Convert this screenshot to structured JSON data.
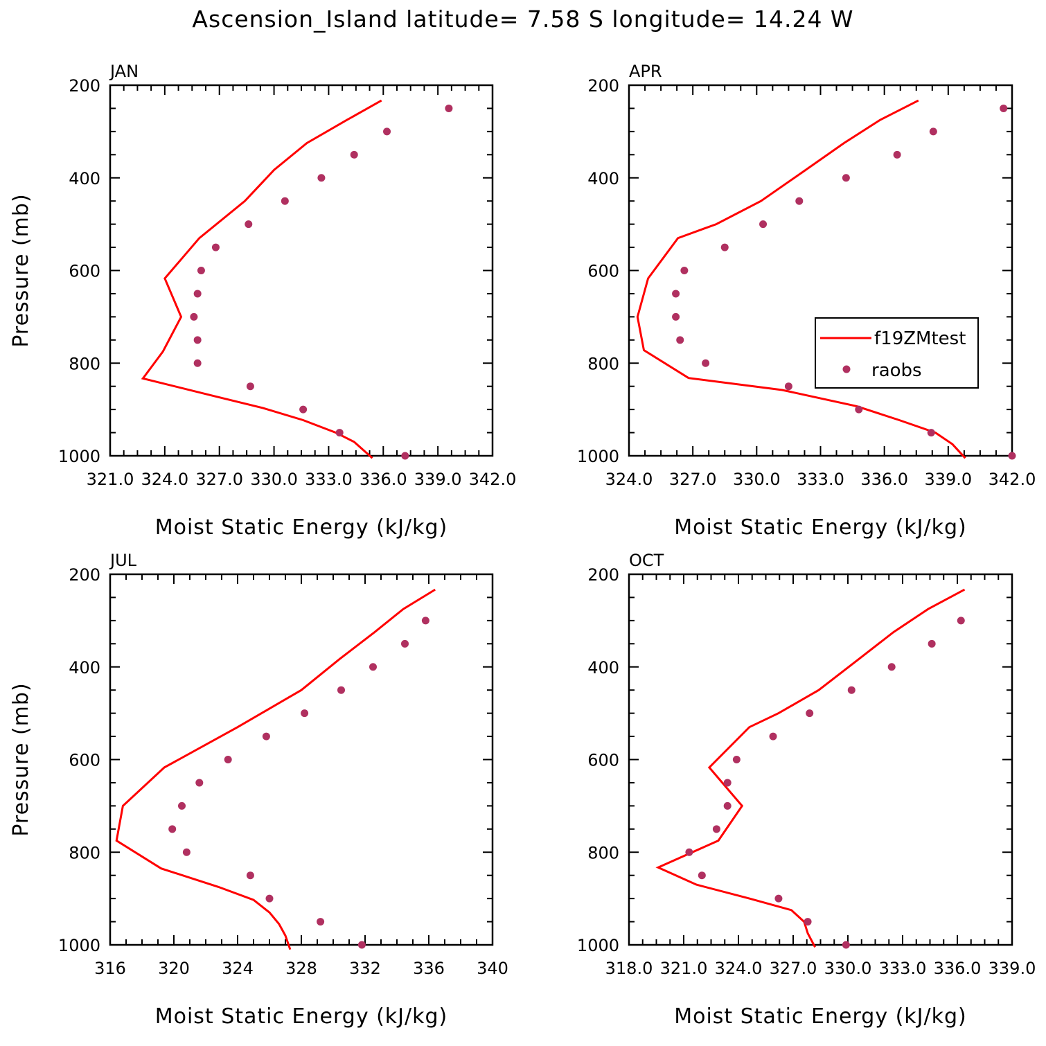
{
  "title": "Ascension_Island  latitude= 7.58 S longitude= 14.24 W",
  "colors": {
    "model": "#ff0000",
    "obs": "#b03060",
    "axis": "#000000"
  },
  "legend": {
    "items": [
      {
        "label": "f19ZMtest",
        "kind": "line"
      },
      {
        "label": "raobs",
        "kind": "marker"
      }
    ],
    "location": "inside APR panel, lower right"
  },
  "chart_data": [
    {
      "type": "line",
      "panel": "JAN",
      "xlabel": "Moist Static Energy (kJ/kg)",
      "ylabel": "Pressure (mb)",
      "xlim": [
        321.0,
        342.0
      ],
      "ylim": [
        1000,
        200
      ],
      "xticks": [
        "321.0",
        "324.0",
        "327.0",
        "330.0",
        "333.0",
        "336.0",
        "339.0",
        "342.0"
      ],
      "yticks": [
        "200",
        "400",
        "600",
        "800",
        "1000"
      ],
      "series": [
        {
          "name": "f19ZMtest",
          "x": [
            335.9,
            334.0,
            331.8,
            330.0,
            328.4,
            325.9,
            324.0,
            324.9,
            323.9,
            322.8,
            326.6,
            329.4,
            331.6,
            333.4,
            334.4,
            335.4
          ],
          "y": [
            233,
            275,
            325,
            383,
            450,
            530,
            617,
            700,
            775,
            833,
            870,
            897,
            923,
            950,
            970,
            1005
          ]
        },
        {
          "name": "raobs",
          "x": [
            339.6,
            336.2,
            334.4,
            332.6,
            330.6,
            328.6,
            326.8,
            326.0,
            325.8,
            325.6,
            325.8,
            325.8,
            328.7,
            331.6,
            333.6,
            337.2
          ],
          "y": [
            250,
            300,
            350,
            400,
            450,
            500,
            550,
            600,
            650,
            700,
            750,
            800,
            850,
            900,
            950,
            1000
          ]
        }
      ]
    },
    {
      "type": "line",
      "panel": "APR",
      "xlabel": "Moist Static Energy (kJ/kg)",
      "ylabel": "",
      "xlim": [
        324.0,
        342.0
      ],
      "ylim": [
        1000,
        200
      ],
      "xticks": [
        "324.0",
        "327.0",
        "330.0",
        "333.0",
        "336.0",
        "339.0",
        "342.0"
      ],
      "yticks": [
        "200",
        "400",
        "600",
        "800",
        "1000"
      ],
      "series": [
        {
          "name": "f19ZMtest",
          "x": [
            337.6,
            335.8,
            334.1,
            332.3,
            330.2,
            328.1,
            326.3,
            324.9,
            324.4,
            324.7,
            326.8,
            331.2,
            334.7,
            336.7,
            338.4,
            339.2,
            339.8
          ],
          "y": [
            233,
            275,
            325,
            383,
            450,
            500,
            530,
            617,
            700,
            772,
            832,
            858,
            893,
            923,
            950,
            975,
            1005
          ]
        },
        {
          "name": "raobs",
          "x": [
            341.6,
            338.3,
            336.6,
            334.2,
            332.0,
            330.3,
            328.5,
            326.6,
            326.2,
            326.2,
            326.4,
            327.6,
            331.5,
            334.8,
            338.2,
            342.0
          ],
          "y": [
            250,
            300,
            350,
            400,
            450,
            500,
            550,
            600,
            650,
            700,
            750,
            800,
            850,
            900,
            950,
            1000
          ]
        }
      ]
    },
    {
      "type": "line",
      "panel": "JUL",
      "xlabel": "Moist Static Energy (kJ/kg)",
      "ylabel": "Pressure (mb)",
      "xlim": [
        316,
        340
      ],
      "ylim": [
        1000,
        200
      ],
      "xticks": [
        "316",
        "320",
        "324",
        "328",
        "332",
        "336",
        "340"
      ],
      "yticks": [
        "200",
        "400",
        "600",
        "800",
        "1000"
      ],
      "series": [
        {
          "name": "f19ZMtest",
          "x": [
            336.4,
            334.4,
            332.6,
            330.4,
            328.0,
            324.0,
            319.4,
            316.8,
            316.4,
            319.2,
            322.8,
            325.0,
            326.0,
            326.6,
            327.0,
            327.3
          ],
          "y": [
            233,
            275,
            325,
            383,
            450,
            530,
            617,
            700,
            775,
            835,
            875,
            903,
            930,
            955,
            980,
            1010
          ]
        },
        {
          "name": "raobs",
          "x": [
            335.8,
            334.5,
            332.5,
            330.5,
            328.2,
            325.8,
            323.4,
            321.6,
            320.5,
            319.9,
            320.8,
            324.8,
            326.0,
            329.2,
            331.8
          ],
          "y": [
            300,
            350,
            400,
            450,
            500,
            550,
            600,
            650,
            700,
            750,
            800,
            850,
            900,
            950,
            1000
          ]
        }
      ]
    },
    {
      "type": "line",
      "panel": "OCT",
      "xlabel": "Moist Static Energy (kJ/kg)",
      "ylabel": "",
      "xlim": [
        318.0,
        339.0
      ],
      "ylim": [
        1000,
        200
      ],
      "xticks": [
        "318.0",
        "321.0",
        "324.0",
        "327.0",
        "330.0",
        "333.0",
        "336.0",
        "339.0"
      ],
      "yticks": [
        "200",
        "400",
        "600",
        "800",
        "1000"
      ],
      "series": [
        {
          "name": "f19ZMtest",
          "x": [
            336.4,
            334.4,
            332.5,
            330.6,
            328.4,
            326.2,
            324.6,
            322.4,
            324.2,
            322.9,
            319.6,
            321.7,
            324.6,
            326.9,
            327.6,
            327.8,
            328.2
          ],
          "y": [
            233,
            275,
            325,
            383,
            450,
            500,
            530,
            617,
            700,
            775,
            833,
            870,
            900,
            925,
            950,
            975,
            1005
          ]
        },
        {
          "name": "raobs",
          "x": [
            336.2,
            334.6,
            332.4,
            330.2,
            327.9,
            325.9,
            323.9,
            323.4,
            323.4,
            322.8,
            321.3,
            322.0,
            326.2,
            327.8,
            329.9
          ],
          "y": [
            300,
            350,
            400,
            450,
            500,
            550,
            600,
            650,
            700,
            750,
            800,
            850,
            900,
            950,
            1000
          ]
        }
      ]
    }
  ]
}
